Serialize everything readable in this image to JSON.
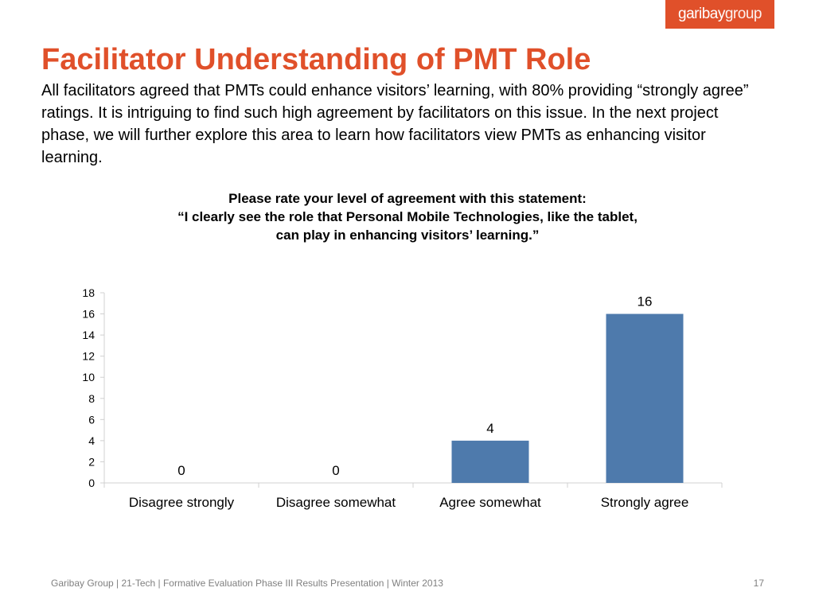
{
  "logo": {
    "part1": "garibay",
    "part2": "group"
  },
  "slide": {
    "title": "Facilitator Understanding of PMT Role",
    "intro": "All facilitators agreed that PMTs could enhance visitors’ learning, with 80% providing “strongly agree” ratings. It is intriguing to find such high agreement by facilitators on this issue. In the next project phase, we will further explore this area to learn how facilitators view PMTs as enhancing visitor learning."
  },
  "chart_data": {
    "type": "bar",
    "title_lines": [
      "Please rate your level of agreement with this statement:",
      "“I clearly see the role that Personal Mobile Technologies, like the tablet,",
      "can play in enhancing visitors’ learning.”"
    ],
    "categories": [
      "Disagree strongly",
      "Disagree somewhat",
      "Agree somewhat",
      "Strongly agree"
    ],
    "values": [
      0,
      0,
      4,
      16
    ],
    "data_labels": [
      "0",
      "0",
      "4",
      "16"
    ],
    "yticks": [
      "0",
      "2",
      "4",
      "6",
      "8",
      "10",
      "12",
      "14",
      "16",
      "18"
    ],
    "ylim": [
      0,
      18
    ],
    "bar_color": "#4e7aac",
    "grid": false,
    "legend": "none"
  },
  "footer": {
    "text": "Garibay Group | 21-Tech | Formative Evaluation Phase III Results Presentation | Winter 2013",
    "page_number": "17"
  },
  "colors": {
    "accent": "#e0502a",
    "bar": "#4e7aac"
  }
}
